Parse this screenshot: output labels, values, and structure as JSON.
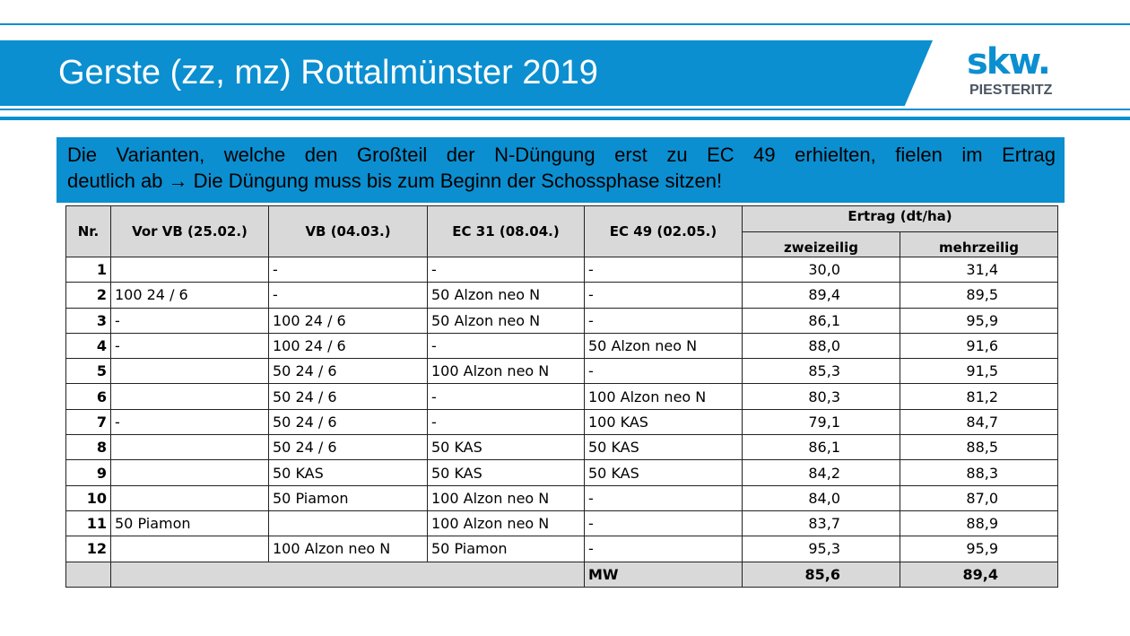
{
  "title": "Gerste (zz, mz) Rottalmünster 2019",
  "logo": {
    "main": "skw.",
    "sub": "PIESTERITZ"
  },
  "info": {
    "line1": "Die Varianten, welche den Großteil der N-Düngung erst zu EC 49 erhielten, fielen im Ertrag",
    "line2": "deutlich ab → Die Düngung muss bis zum Beginn der Schossphase sitzen!"
  },
  "table": {
    "headers": {
      "nr": "Nr.",
      "vor_vb": "Vor VB (25.02.)",
      "vb": "VB (04.03.)",
      "ec31": "EC 31 (08.04.)",
      "ec49": "EC 49 (02.05.)",
      "ertrag": "Ertrag (dt/ha)",
      "zweizeilig": "zweizeilig",
      "mehrzeilig": "mehrzeilig"
    },
    "rows": [
      {
        "nr": "1",
        "vor_vb": "",
        "vb": "-",
        "ec31": "-",
        "ec49": "-",
        "zz": "30,0",
        "mz": "31,4"
      },
      {
        "nr": "2",
        "vor_vb": "100 24 / 6",
        "vb": "-",
        "ec31": "50 Alzon neo N",
        "ec49": "-",
        "zz": "89,4",
        "mz": "89,5"
      },
      {
        "nr": "3",
        "vor_vb": "-",
        "vb": "100 24 / 6",
        "ec31": "50 Alzon neo N",
        "ec49": "-",
        "zz": "86,1",
        "mz": "95,9"
      },
      {
        "nr": "4",
        "vor_vb": "-",
        "vb": "100 24 / 6",
        "ec31": "-",
        "ec49": "50 Alzon neo N",
        "zz": "88,0",
        "mz": "91,6"
      },
      {
        "nr": "5",
        "vor_vb": "",
        "vb": "50 24 / 6",
        "ec31": "100 Alzon neo N",
        "ec49": "-",
        "zz": "85,3",
        "mz": "91,5"
      },
      {
        "nr": "6",
        "vor_vb": "",
        "vb": "50 24 / 6",
        "ec31": "-",
        "ec49": "100 Alzon neo N",
        "zz": "80,3",
        "mz": "81,2"
      },
      {
        "nr": "7",
        "vor_vb": "-",
        "vb": "50 24 / 6",
        "ec31": "-",
        "ec49": "100 KAS",
        "zz": "79,1",
        "mz": "84,7"
      },
      {
        "nr": "8",
        "vor_vb": "",
        "vb": "50 24 / 6",
        "ec31": "50 KAS",
        "ec49": "50 KAS",
        "zz": "86,1",
        "mz": "88,5"
      },
      {
        "nr": "9",
        "vor_vb": "",
        "vb": "50 KAS",
        "ec31": "50 KAS",
        "ec49": "50 KAS",
        "zz": "84,2",
        "mz": "88,3"
      },
      {
        "nr": "10",
        "vor_vb": "",
        "vb": "50 Piamon",
        "ec31": "100 Alzon neo N",
        "ec49": "-",
        "zz": "84,0",
        "mz": "87,0"
      },
      {
        "nr": "11",
        "vor_vb": "50 Piamon",
        "vb": "",
        "ec31": "100 Alzon neo N",
        "ec49": "-",
        "zz": "83,7",
        "mz": "88,9"
      },
      {
        "nr": "12",
        "vor_vb": "",
        "vb": "100 Alzon neo N",
        "ec31": "50 Piamon",
        "ec49": "-",
        "zz": "95,3",
        "mz": "95,9"
      }
    ],
    "mean": {
      "label": "MW",
      "zz": "85,6",
      "mz": "89,4"
    }
  }
}
